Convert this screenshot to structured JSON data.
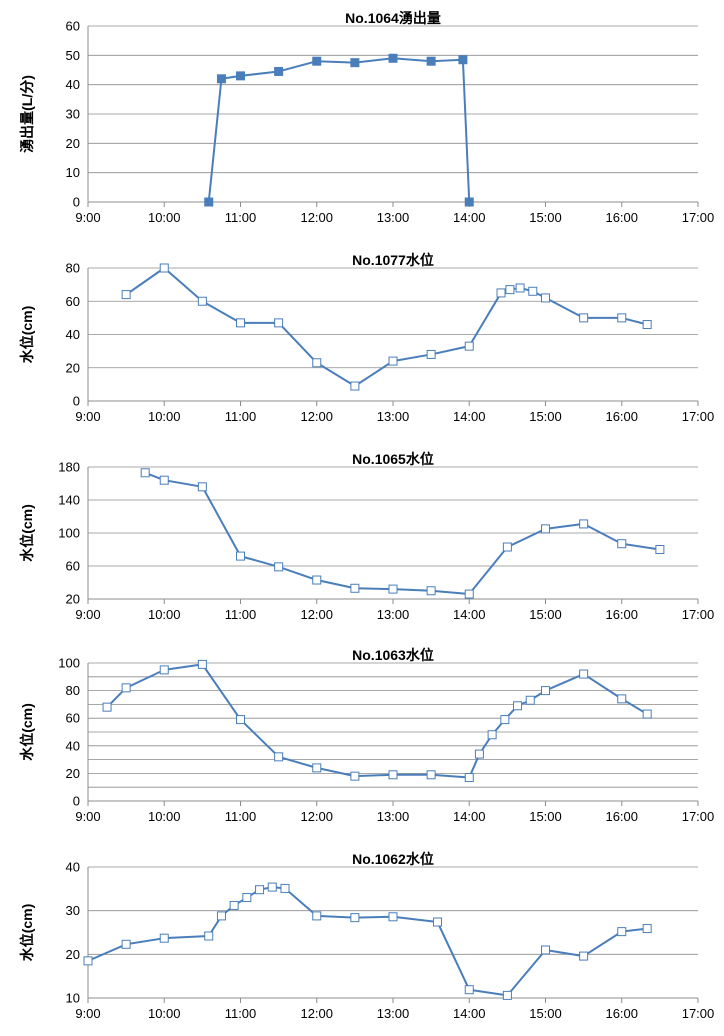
{
  "chart_data": [
    {
      "type": "line",
      "title": "No.1064湧出量",
      "ylabel": "湧出量(L/分)",
      "xlim": [
        "9:00",
        "17:00"
      ],
      "ylim": [
        0,
        60
      ],
      "x_ticks": [
        "9:00",
        "10:00",
        "11:00",
        "12:00",
        "13:00",
        "14:00",
        "15:00",
        "16:00",
        "17:00"
      ],
      "y_ticks": [
        0,
        10,
        20,
        30,
        40,
        50,
        60
      ],
      "grid": true,
      "marker": "filled-square",
      "color": "#4a7ebb",
      "points": [
        {
          "x": "10:35",
          "y": 0
        },
        {
          "x": "10:45",
          "y": 42
        },
        {
          "x": "11:00",
          "y": 43
        },
        {
          "x": "11:30",
          "y": 44.5
        },
        {
          "x": "12:00",
          "y": 48
        },
        {
          "x": "12:30",
          "y": 47.5
        },
        {
          "x": "13:00",
          "y": 49
        },
        {
          "x": "13:30",
          "y": 48
        },
        {
          "x": "13:55",
          "y": 48.5
        },
        {
          "x": "14:00",
          "y": 0
        }
      ]
    },
    {
      "type": "line",
      "title": "No.1077水位",
      "ylabel": "水位(cm)",
      "xlim": [
        "9:00",
        "17:00"
      ],
      "ylim": [
        0,
        80
      ],
      "x_ticks": [
        "9:00",
        "10:00",
        "11:00",
        "12:00",
        "13:00",
        "14:00",
        "15:00",
        "16:00",
        "17:00"
      ],
      "y_ticks": [
        0,
        20,
        40,
        60,
        80
      ],
      "grid": true,
      "marker": "open-square",
      "color": "#4a7ebb",
      "points": [
        {
          "x": "9:30",
          "y": 64
        },
        {
          "x": "10:00",
          "y": 80
        },
        {
          "x": "10:30",
          "y": 60
        },
        {
          "x": "11:00",
          "y": 47
        },
        {
          "x": "11:30",
          "y": 47
        },
        {
          "x": "12:00",
          "y": 23
        },
        {
          "x": "12:30",
          "y": 9
        },
        {
          "x": "13:00",
          "y": 24
        },
        {
          "x": "13:30",
          "y": 28
        },
        {
          "x": "14:00",
          "y": 33
        },
        {
          "x": "14:25",
          "y": 65
        },
        {
          "x": "14:32",
          "y": 67
        },
        {
          "x": "14:40",
          "y": 68
        },
        {
          "x": "14:50",
          "y": 66
        },
        {
          "x": "15:00",
          "y": 62
        },
        {
          "x": "15:30",
          "y": 50
        },
        {
          "x": "16:00",
          "y": 50
        },
        {
          "x": "16:20",
          "y": 46
        }
      ]
    },
    {
      "type": "line",
      "title": "No.1065水位",
      "ylabel": "水位(cm)",
      "xlim": [
        "9:00",
        "17:00"
      ],
      "ylim": [
        20,
        180
      ],
      "x_ticks": [
        "9:00",
        "10:00",
        "11:00",
        "12:00",
        "13:00",
        "14:00",
        "15:00",
        "16:00",
        "17:00"
      ],
      "y_ticks": [
        20,
        60,
        100,
        140,
        180
      ],
      "grid": true,
      "marker": "open-square",
      "color": "#4a7ebb",
      "points": [
        {
          "x": "9:45",
          "y": 173
        },
        {
          "x": "10:00",
          "y": 164
        },
        {
          "x": "10:30",
          "y": 156
        },
        {
          "x": "11:00",
          "y": 72
        },
        {
          "x": "11:30",
          "y": 59
        },
        {
          "x": "12:00",
          "y": 43
        },
        {
          "x": "12:30",
          "y": 33
        },
        {
          "x": "13:00",
          "y": 32
        },
        {
          "x": "13:30",
          "y": 30
        },
        {
          "x": "14:00",
          "y": 26
        },
        {
          "x": "14:30",
          "y": 83
        },
        {
          "x": "15:00",
          "y": 105
        },
        {
          "x": "15:30",
          "y": 111
        },
        {
          "x": "16:00",
          "y": 87
        },
        {
          "x": "16:30",
          "y": 80
        }
      ]
    },
    {
      "type": "line",
      "title": "No.1063水位",
      "ylabel": "水位(cm)",
      "xlim": [
        "9:00",
        "17:00"
      ],
      "ylim": [
        0,
        100
      ],
      "x_ticks": [
        "9:00",
        "10:00",
        "11:00",
        "12:00",
        "13:00",
        "14:00",
        "15:00",
        "16:00",
        "17:00"
      ],
      "y_ticks": [
        0,
        10,
        20,
        30,
        40,
        50,
        60,
        70,
        80,
        90,
        100
      ],
      "y_tick_labels": [
        "0",
        "",
        "20",
        "",
        "40",
        "",
        "60",
        "",
        "80",
        "",
        "100"
      ],
      "grid": true,
      "marker": "open-square",
      "color": "#4a7ebb",
      "points": [
        {
          "x": "9:15",
          "y": 68
        },
        {
          "x": "9:30",
          "y": 82
        },
        {
          "x": "10:00",
          "y": 95
        },
        {
          "x": "10:30",
          "y": 99
        },
        {
          "x": "11:00",
          "y": 59
        },
        {
          "x": "11:30",
          "y": 32
        },
        {
          "x": "12:00",
          "y": 24
        },
        {
          "x": "12:30",
          "y": 18
        },
        {
          "x": "13:00",
          "y": 19
        },
        {
          "x": "13:30",
          "y": 19
        },
        {
          "x": "14:00",
          "y": 17
        },
        {
          "x": "14:08",
          "y": 34
        },
        {
          "x": "14:18",
          "y": 48
        },
        {
          "x": "14:28",
          "y": 59
        },
        {
          "x": "14:38",
          "y": 69
        },
        {
          "x": "14:48",
          "y": 73
        },
        {
          "x": "15:00",
          "y": 80
        },
        {
          "x": "15:30",
          "y": 92
        },
        {
          "x": "16:00",
          "y": 74
        },
        {
          "x": "16:20",
          "y": 63
        }
      ]
    },
    {
      "type": "line",
      "title": "No.1062水位",
      "ylabel": "水位(cm)",
      "xlim": [
        "9:00",
        "17:00"
      ],
      "ylim": [
        10,
        40
      ],
      "x_ticks": [
        "9:00",
        "10:00",
        "11:00",
        "12:00",
        "13:00",
        "14:00",
        "15:00",
        "16:00",
        "17:00"
      ],
      "y_ticks": [
        10,
        20,
        30,
        40
      ],
      "grid": true,
      "marker": "open-square",
      "color": "#4a7ebb",
      "points": [
        {
          "x": "9:00",
          "y": 18.5
        },
        {
          "x": "9:30",
          "y": 22.3
        },
        {
          "x": "10:00",
          "y": 23.7
        },
        {
          "x": "10:35",
          "y": 24.2
        },
        {
          "x": "10:45",
          "y": 28.8
        },
        {
          "x": "10:55",
          "y": 31.2
        },
        {
          "x": "11:05",
          "y": 33.0
        },
        {
          "x": "11:15",
          "y": 34.8
        },
        {
          "x": "11:25",
          "y": 35.4
        },
        {
          "x": "11:35",
          "y": 35.1
        },
        {
          "x": "12:00",
          "y": 28.8
        },
        {
          "x": "12:30",
          "y": 28.4
        },
        {
          "x": "13:00",
          "y": 28.6
        },
        {
          "x": "13:35",
          "y": 27.4
        },
        {
          "x": "14:00",
          "y": 11.9
        },
        {
          "x": "14:30",
          "y": 10.6
        },
        {
          "x": "15:00",
          "y": 21.0
        },
        {
          "x": "15:30",
          "y": 19.6
        },
        {
          "x": "16:00",
          "y": 25.2
        },
        {
          "x": "16:20",
          "y": 25.9
        }
      ]
    }
  ]
}
